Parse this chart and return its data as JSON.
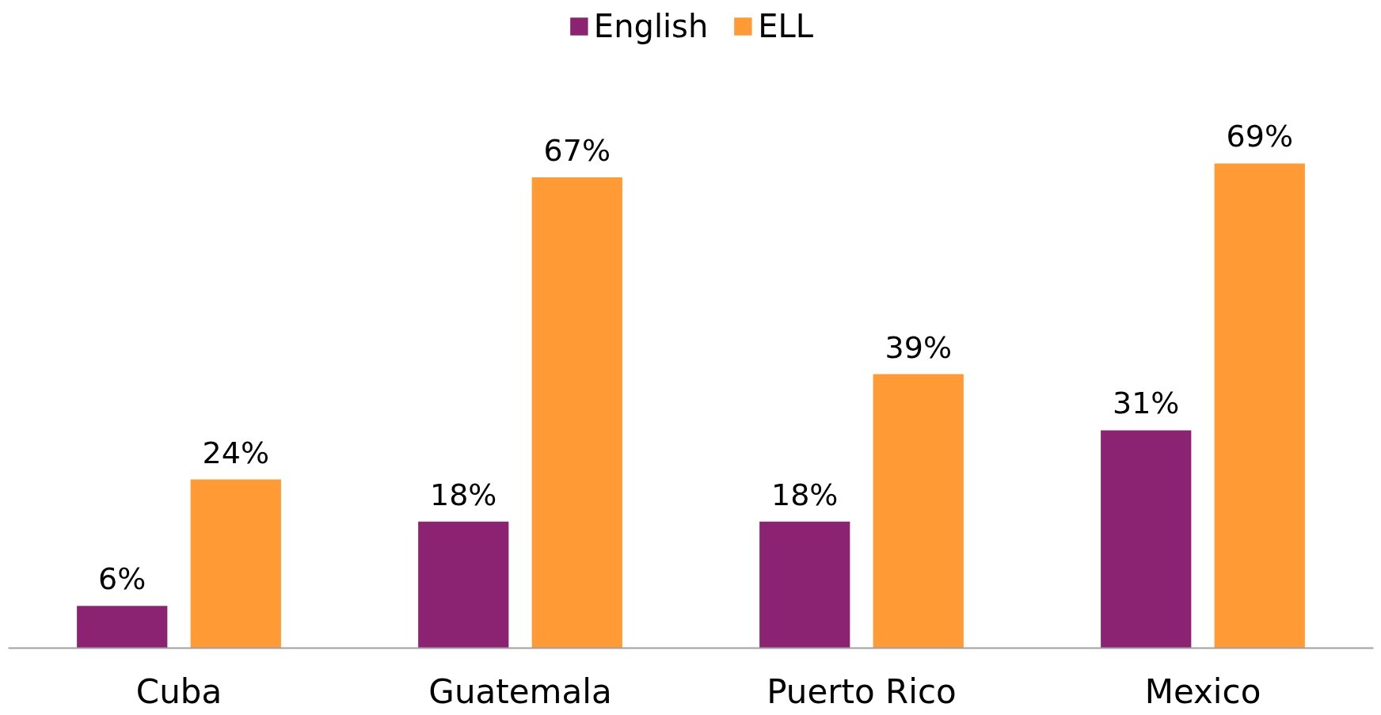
{
  "chart_data": {
    "type": "bar",
    "categories": [
      "Cuba",
      "Guatemala",
      "Puerto Rico",
      "Mexico"
    ],
    "series": [
      {
        "name": "English",
        "color": "#8b2372",
        "values": [
          6,
          18,
          18,
          31
        ],
        "value_labels": [
          "6%",
          "18%",
          "18%",
          "31%"
        ]
      },
      {
        "name": "ELL",
        "color": "#ff9a35",
        "values": [
          24,
          67,
          39,
          69
        ],
        "value_labels": [
          "24%",
          "67%",
          "39%",
          "69%"
        ]
      }
    ],
    "legend": "top",
    "grid": false
  }
}
